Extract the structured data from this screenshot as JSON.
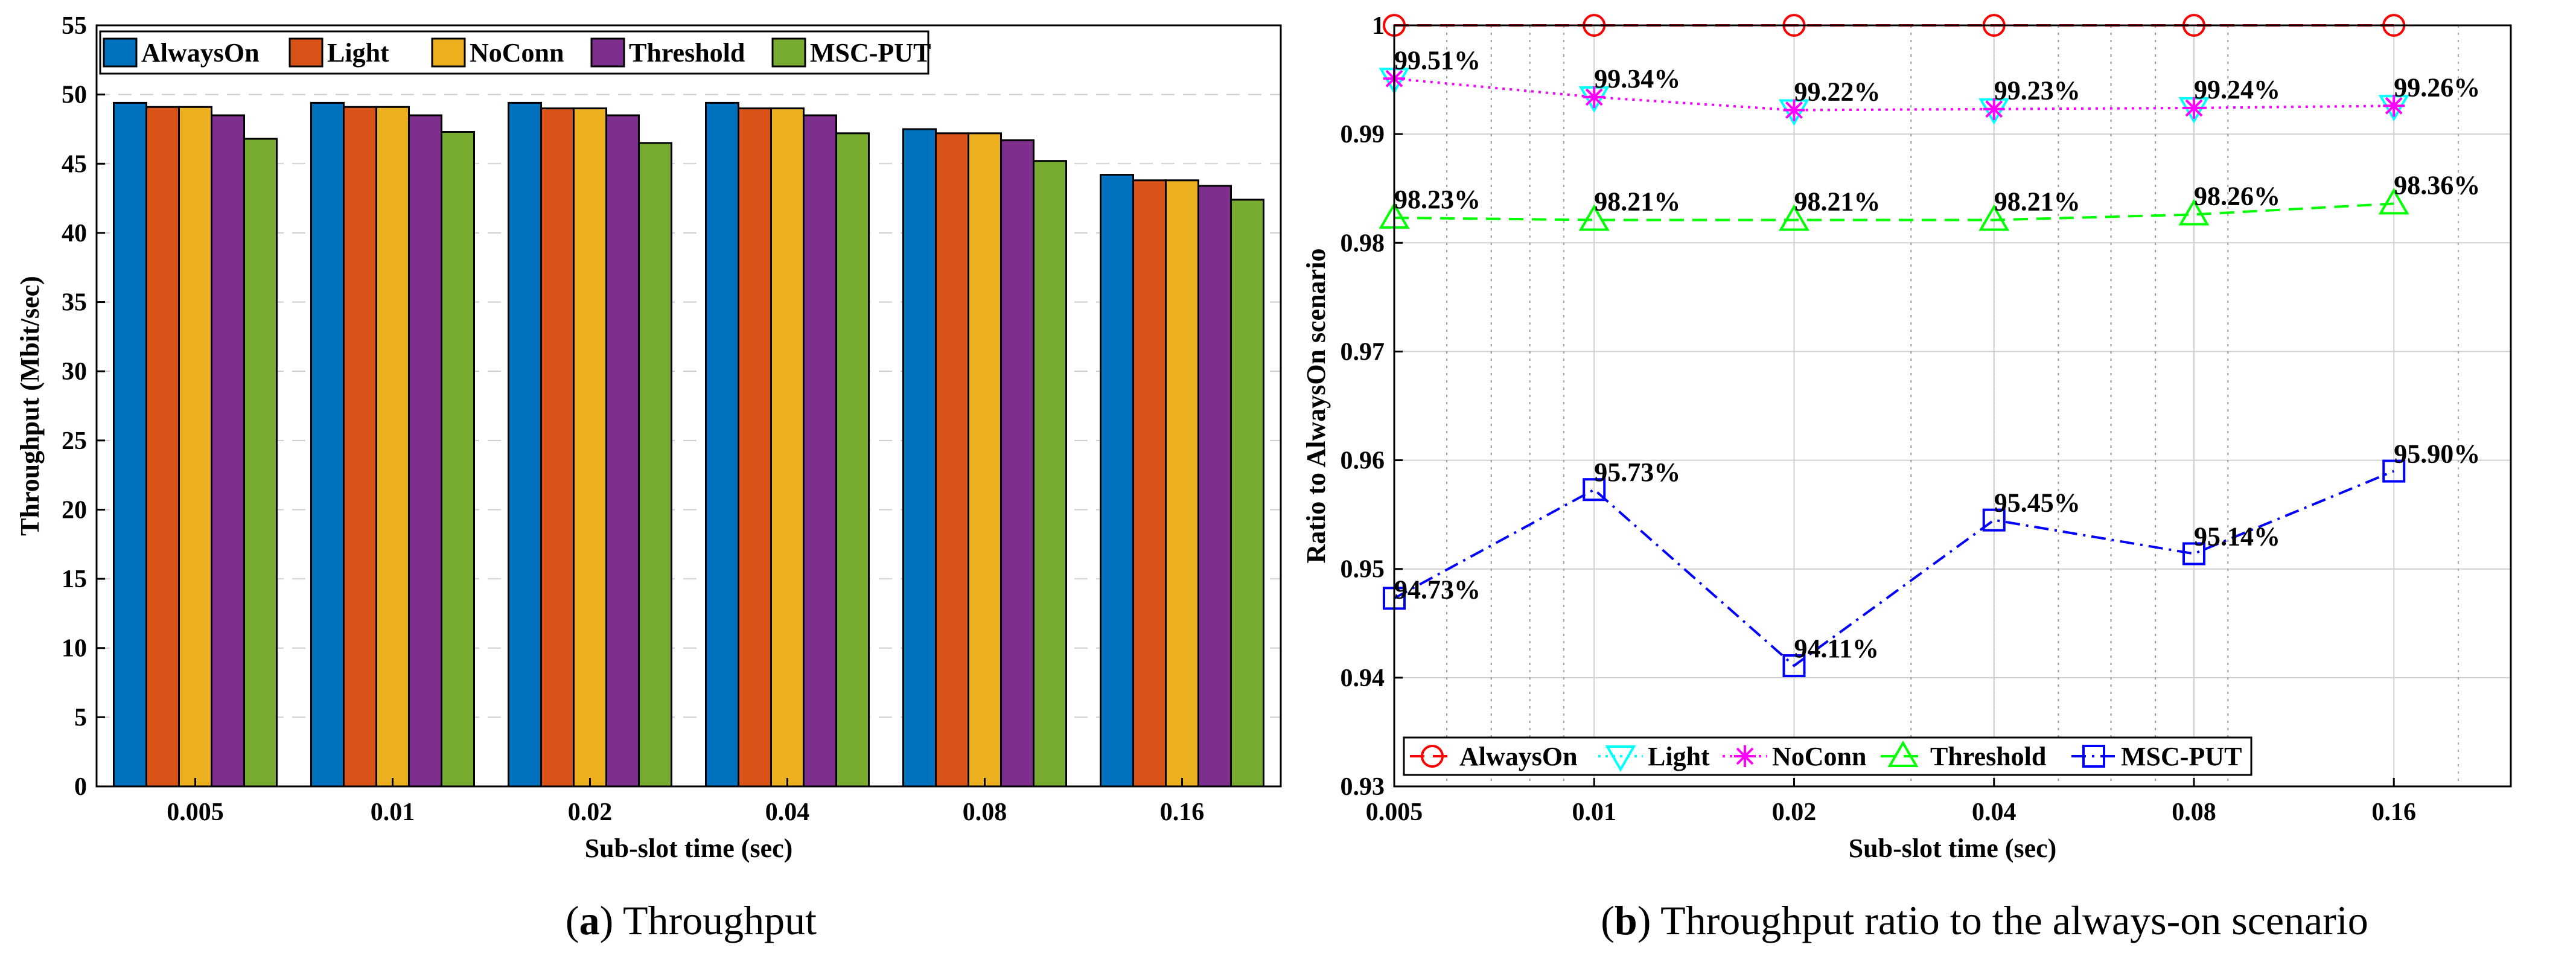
{
  "chart_data": [
    {
      "type": "bar",
      "title": "",
      "xlabel": "Sub-slot time (sec)",
      "ylabel": "Throughput (Mbit/sec)",
      "ylim": [
        0,
        55
      ],
      "yticks": [
        0,
        5,
        10,
        15,
        20,
        25,
        30,
        35,
        40,
        45,
        50,
        55
      ],
      "categories": [
        "0.005",
        "0.01",
        "0.02",
        "0.04",
        "0.08",
        "0.16"
      ],
      "grid": "horizontal dashed",
      "legend_position": "top-left, single row",
      "series": [
        {
          "name": "AlwaysOn",
          "color": "#0072BD",
          "values": [
            49.4,
            49.4,
            49.4,
            49.4,
            47.5,
            44.2
          ]
        },
        {
          "name": "Light",
          "color": "#D95319",
          "values": [
            49.1,
            49.1,
            49.0,
            49.0,
            47.2,
            43.8
          ]
        },
        {
          "name": "NoConn",
          "color": "#EDB120",
          "values": [
            49.1,
            49.1,
            49.0,
            49.0,
            47.2,
            43.8
          ]
        },
        {
          "name": "Threshold",
          "color": "#7E2F8E",
          "values": [
            48.5,
            48.5,
            48.5,
            48.5,
            46.7,
            43.4
          ]
        },
        {
          "name": "MSC-PUT",
          "color": "#77AC30",
          "values": [
            46.8,
            47.3,
            46.5,
            47.2,
            45.2,
            42.4
          ]
        }
      ],
      "caption_label": "a",
      "caption_text": "Throughput"
    },
    {
      "type": "line",
      "title": "",
      "xlabel": "Sub-slot time (sec)",
      "ylabel": "Ratio to AlwaysOn scenario",
      "x_scale": "log",
      "x": [
        "0.005",
        "0.01",
        "0.02",
        "0.04",
        "0.08",
        "0.16"
      ],
      "xlim": [
        0.005,
        0.24
      ],
      "ylim": [
        0.93,
        1.0
      ],
      "yticks": [
        "0.93",
        "0.94",
        "0.95",
        "0.96",
        "0.97",
        "0.98",
        "0.99",
        "1"
      ],
      "grid": "on, with dotted minor x grid",
      "legend_position": "bottom, single row",
      "series": [
        {
          "name": "AlwaysOn",
          "color": "#FF0000",
          "marker": "circle",
          "dash": "dashed",
          "values": [
            1.0,
            1.0,
            1.0,
            1.0,
            1.0,
            1.0
          ],
          "labels": []
        },
        {
          "name": "Light",
          "color": "#00FFFF",
          "marker": "triangle-down",
          "dash": "dotted",
          "values": [
            0.9951,
            0.9934,
            0.9922,
            0.9923,
            0.9924,
            0.9926
          ],
          "labels": []
        },
        {
          "name": "NoConn",
          "color": "#FF00FF",
          "marker": "asterisk",
          "dash": "dotted",
          "values": [
            0.9951,
            0.9934,
            0.9922,
            0.9923,
            0.9924,
            0.9926
          ],
          "labels": [
            "99.51%",
            "99.34%",
            "99.22%",
            "99.23%",
            "99.24%",
            "99.26%"
          ]
        },
        {
          "name": "Threshold",
          "color": "#00FF00",
          "marker": "triangle-up",
          "dash": "dashed",
          "values": [
            0.9823,
            0.9821,
            0.9821,
            0.9821,
            0.9826,
            0.9836
          ],
          "labels": [
            "98.23%",
            "98.21%",
            "98.21%",
            "98.21%",
            "98.26%",
            "98.36%"
          ]
        },
        {
          "name": "MSC-PUT",
          "color": "#0000FF",
          "marker": "square",
          "dash": "dash-dot",
          "values": [
            0.9473,
            0.9573,
            0.9411,
            0.9545,
            0.9514,
            0.959
          ],
          "labels": [
            "94.73%",
            "95.73%",
            "94.11%",
            "95.45%",
            "95.14%",
            "95.90%"
          ]
        }
      ],
      "caption_label": "b",
      "caption_text": "Throughput ratio to the always-on scenario"
    }
  ]
}
